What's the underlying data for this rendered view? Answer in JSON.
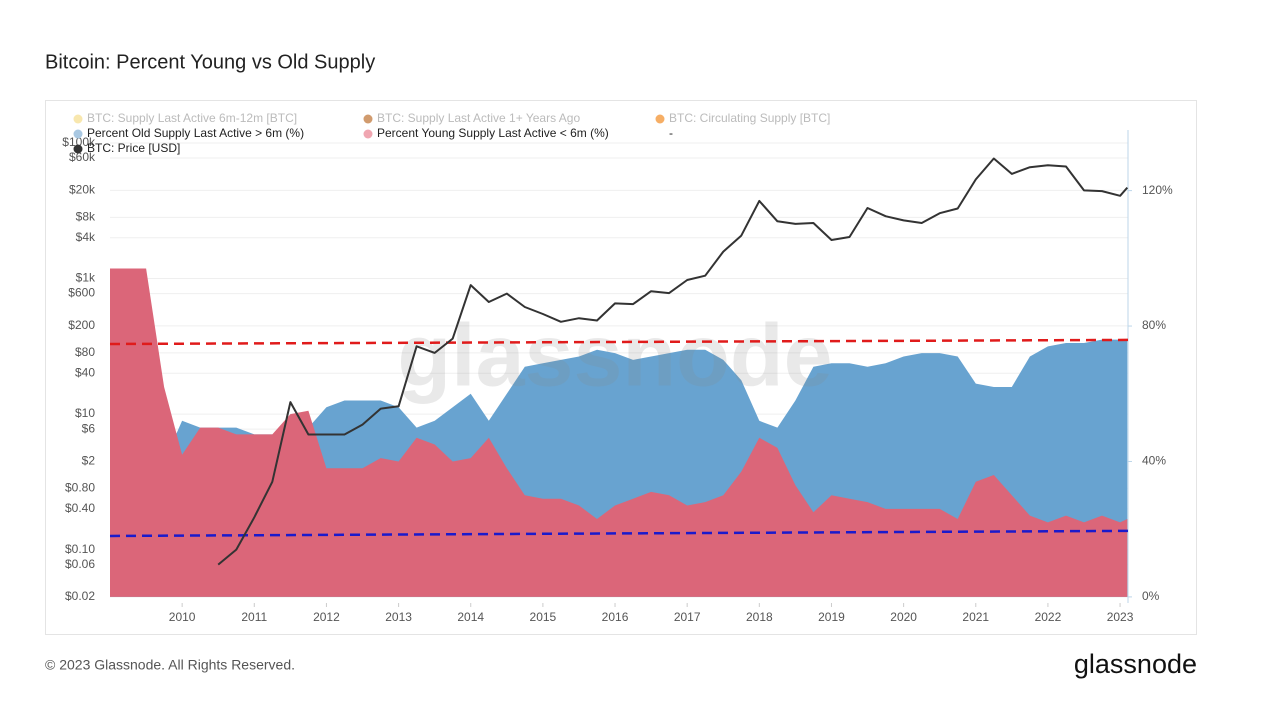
{
  "chart_data": {
    "type": "line",
    "title": "Bitcoin: Percent Young vs Old Supply",
    "watermark": "glassnode",
    "log_scale": true,
    "grid": true,
    "legend": "top-left",
    "x": [
      2009.0,
      2009.25,
      2009.5,
      2009.75,
      2010.0,
      2010.25,
      2010.5,
      2010.75,
      2011.0,
      2011.25,
      2011.5,
      2011.75,
      2012.0,
      2012.25,
      2012.5,
      2012.75,
      2013.0,
      2013.25,
      2013.5,
      2013.75,
      2014.0,
      2014.25,
      2014.5,
      2014.75,
      2015.0,
      2015.25,
      2015.5,
      2015.75,
      2016.0,
      2016.25,
      2016.5,
      2016.75,
      2017.0,
      2017.25,
      2017.5,
      2017.75,
      2018.0,
      2018.25,
      2018.5,
      2018.75,
      2019.0,
      2019.25,
      2019.5,
      2019.75,
      2020.0,
      2020.25,
      2020.5,
      2020.75,
      2021.0,
      2021.25,
      2021.5,
      2021.75,
      2022.0,
      2022.25,
      2022.5,
      2022.75,
      2023.0,
      2023.1
    ],
    "xlim": [
      2009.0,
      2023.11
    ],
    "xticks": [
      2010,
      2011,
      2012,
      2013,
      2014,
      2015,
      2016,
      2017,
      2018,
      2019,
      2020,
      2021,
      2022,
      2023
    ],
    "ylim": [
      0.0163,
      155500
    ],
    "yticks": [
      {
        "value": 100000,
        "label": "$100k"
      },
      {
        "value": 60000,
        "label": "$60k"
      },
      {
        "value": 20000,
        "label": "$20k"
      },
      {
        "value": 8000,
        "label": "$8k"
      },
      {
        "value": 4000,
        "label": "$4k"
      },
      {
        "value": 1000,
        "label": "$1k"
      },
      {
        "value": 600,
        "label": "$600"
      },
      {
        "value": 200,
        "label": "$200"
      },
      {
        "value": 80,
        "label": "$80"
      },
      {
        "value": 40,
        "label": "$40"
      },
      {
        "value": 10,
        "label": "$10"
      },
      {
        "value": 6,
        "label": "$6"
      },
      {
        "value": 2,
        "label": "$2"
      },
      {
        "value": 0.8,
        "label": "$0.80"
      },
      {
        "value": 0.4,
        "label": "$0.40"
      },
      {
        "value": 0.1,
        "label": "$0.10"
      },
      {
        "value": 0.06,
        "label": "$0.06"
      },
      {
        "value": 0.02,
        "label": "$0.02"
      }
    ],
    "y2lim": [
      -1.8,
      137.9
    ],
    "y2ticks": [
      {
        "value": 0,
        "label": "0%"
      },
      {
        "value": 40,
        "label": "40%"
      },
      {
        "value": 80,
        "label": "80%"
      },
      {
        "value": 120,
        "label": "120%"
      }
    ],
    "series": [
      {
        "name": "BTC: Supply Last Active 6m-12m [BTC]",
        "color": "#f7e3a0",
        "hidden": true
      },
      {
        "name": "BTC: Supply Last Active 1+ Years Ago",
        "color": "#c98a55",
        "hidden": true
      },
      {
        "name": "BTC: Circulating Supply [BTC]",
        "color": "#f5a04a",
        "hidden": true
      },
      {
        "name": "Percent Old Supply Last Active > 6m (%)",
        "color": "#a9c8e2",
        "fill": "#68a3d0",
        "style": "area",
        "axis": "y2",
        "values": [
          3,
          3,
          3,
          40,
          52,
          50,
          50,
          50,
          48,
          48,
          45,
          50,
          56,
          58,
          58,
          58,
          56,
          50,
          52,
          56,
          60,
          52,
          60,
          68,
          69,
          70,
          71,
          73,
          72,
          70,
          71,
          72,
          73,
          73,
          70,
          64,
          52,
          50,
          58,
          68,
          69,
          69,
          68,
          69,
          71,
          72,
          72,
          71,
          63,
          62,
          62,
          71,
          74,
          75,
          75,
          76,
          76,
          76
        ]
      },
      {
        "name": "Percent Young Supply Last Active < 6m (%)",
        "color": "#f0a6b1",
        "fill": "#db6679",
        "style": "area",
        "axis": "y2",
        "values": [
          97,
          97,
          97,
          62,
          42,
          50,
          50,
          48,
          48,
          48,
          54,
          55,
          38,
          38,
          38,
          41,
          40,
          47,
          45,
          40,
          41,
          47,
          38,
          30,
          29,
          29,
          27,
          23,
          27,
          29,
          31,
          30,
          27,
          28,
          30,
          37,
          47,
          44,
          33,
          25,
          30,
          29,
          28,
          26,
          26,
          26,
          26,
          23,
          34,
          36,
          30,
          24,
          22,
          24,
          22,
          24,
          22,
          23
        ]
      },
      {
        "name": "-"
      },
      {
        "name": "BTC: Price [USD]",
        "color": "#333333",
        "style": "line",
        "axis": "y",
        "values": [
          null,
          null,
          null,
          null,
          null,
          null,
          0.06,
          0.1,
          0.3,
          1,
          15,
          5,
          5,
          5,
          7,
          12,
          13,
          100,
          80,
          130,
          800,
          450,
          600,
          380,
          300,
          230,
          260,
          240,
          430,
          420,
          650,
          610,
          950,
          1100,
          2500,
          4300,
          14000,
          7000,
          6400,
          6600,
          3700,
          4100,
          11000,
          8300,
          7200,
          6600,
          9200,
          10800,
          29000,
          59000,
          35000,
          44000,
          47000,
          45000,
          20000,
          19500,
          16600,
          22000
        ]
      }
    ],
    "reference_lines": [
      {
        "color": "#e01b1b",
        "axis": "y2",
        "values": [
          74.7,
          75.9
        ]
      },
      {
        "color": "#1a1acc",
        "axis": "y2",
        "values": [
          18.0,
          19.5
        ]
      }
    ]
  },
  "footer": {
    "copyright": "© 2023 Glassnode. All Rights Reserved.",
    "logo": "glassnode"
  }
}
